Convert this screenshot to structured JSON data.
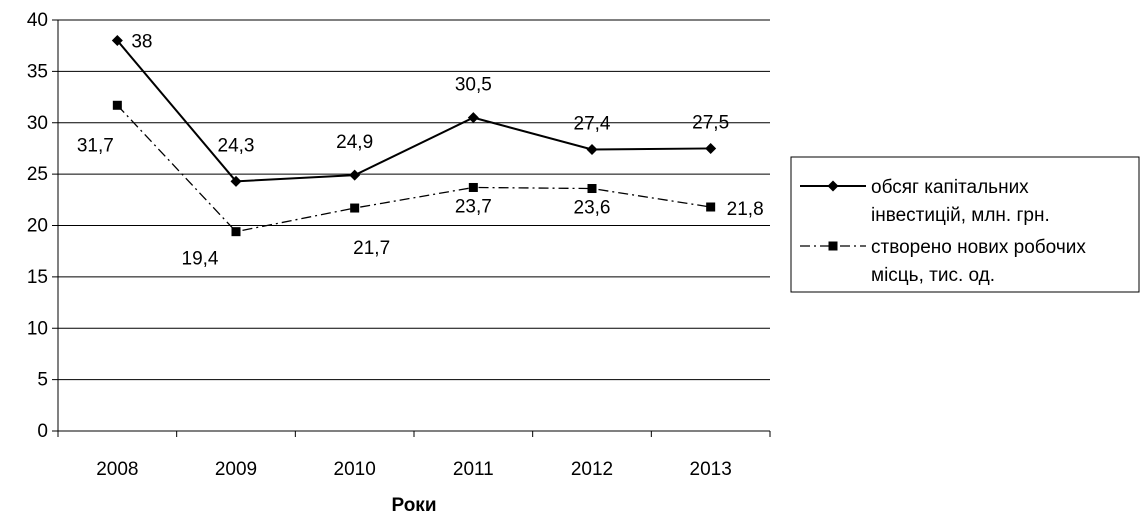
{
  "chart_data": {
    "type": "line",
    "title": "",
    "xlabel": "Роки",
    "ylabel": "",
    "categories": [
      "2008",
      "2009",
      "2010",
      "2011",
      "2012",
      "2013"
    ],
    "ylim": [
      0,
      40
    ],
    "yticks": [
      0,
      5,
      10,
      15,
      20,
      25,
      30,
      35,
      40
    ],
    "grid": "horizontal",
    "legend_position": "right",
    "series": [
      {
        "name_lines": [
          "обсяг капітальних",
          "інвестицій, млн. грн."
        ],
        "values": [
          38,
          24.3,
          24.9,
          30.5,
          27.4,
          27.5
        ],
        "labels": [
          "38",
          "24,3",
          "24,9",
          "30,5",
          "27,4",
          "27,5"
        ],
        "marker": "diamond",
        "line_style": "solid",
        "color": "#000000"
      },
      {
        "name_lines": [
          "створено нових робочих",
          "місць, тис. од."
        ],
        "values": [
          31.7,
          19.4,
          21.7,
          23.7,
          23.6,
          21.8
        ],
        "labels": [
          "31,7",
          "19,4",
          "21,7",
          "23,7",
          "23,6",
          "21,8"
        ],
        "marker": "square",
        "line_style": "dash-dot",
        "color": "#000000"
      }
    ]
  }
}
